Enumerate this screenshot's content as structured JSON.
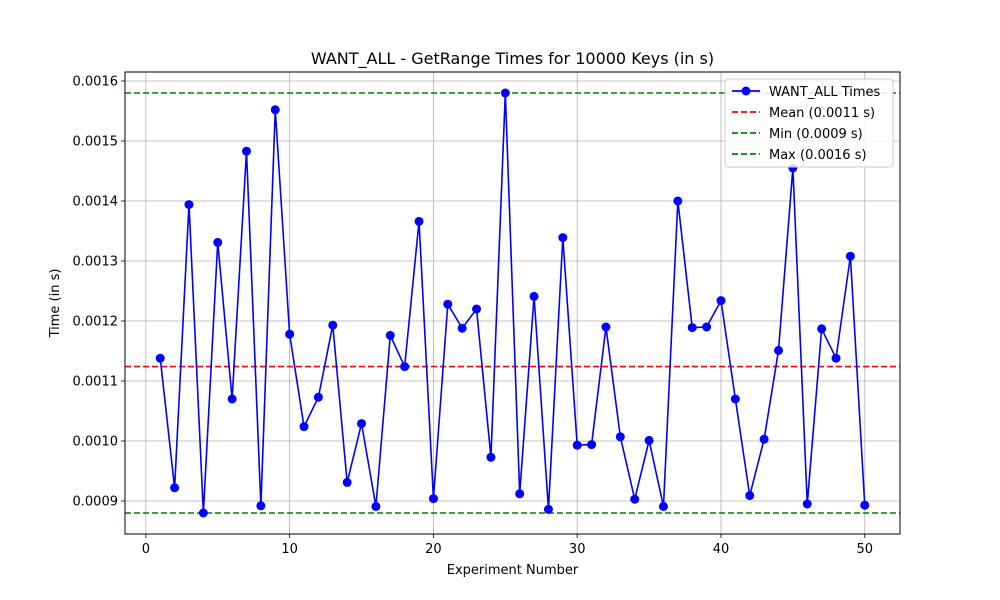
{
  "chart_data": {
    "type": "line",
    "title": "WANT_ALL - GetRange Times for 10000 Keys (in s)",
    "xlabel": "Experiment Number",
    "ylabel": "Time (in s)",
    "xlim": [
      -1.45,
      52.45
    ],
    "ylim": [
      0.000845,
      0.001615
    ],
    "xticks": [
      0,
      10,
      20,
      30,
      40,
      50
    ],
    "xtick_labels": [
      "0",
      "10",
      "20",
      "30",
      "40",
      "50"
    ],
    "yticks": [
      0.0009,
      0.001,
      0.0011,
      0.0012,
      0.0013,
      0.0014,
      0.0015,
      0.0016
    ],
    "ytick_labels": [
      "0.0009",
      "0.0010",
      "0.0011",
      "0.0012",
      "0.0013",
      "0.0014",
      "0.0015",
      "0.0016"
    ],
    "grid": true,
    "legend_position": "top-right",
    "series": [
      {
        "name": "WANT_ALL Times",
        "color": "#0000ff",
        "marker": "circle",
        "x": [
          1,
          2,
          3,
          4,
          5,
          6,
          7,
          8,
          9,
          10,
          11,
          12,
          13,
          14,
          15,
          16,
          17,
          18,
          19,
          20,
          21,
          22,
          23,
          24,
          25,
          26,
          27,
          28,
          29,
          30,
          31,
          32,
          33,
          34,
          35,
          36,
          37,
          38,
          39,
          40,
          41,
          42,
          43,
          44,
          45,
          46,
          47,
          48,
          49,
          50
        ],
        "values": [
          0.001138,
          0.000922,
          0.001394,
          0.00088,
          0.001331,
          0.00107,
          0.001483,
          0.000892,
          0.001552,
          0.001178,
          0.001024,
          0.001073,
          0.001193,
          0.000931,
          0.001029,
          0.000891,
          0.001176,
          0.001124,
          0.001366,
          0.000904,
          0.001228,
          0.001188,
          0.00122,
          0.000973,
          0.00158,
          0.000912,
          0.001241,
          0.000886,
          0.001339,
          0.000993,
          0.000994,
          0.00119,
          0.001007,
          0.000903,
          0.001001,
          0.000891,
          0.0014,
          0.001189,
          0.00119,
          0.001234,
          0.00107,
          0.000909,
          0.001003,
          0.001151,
          0.001455,
          0.000895,
          0.001187,
          0.001138,
          0.001308,
          0.000893
        ]
      }
    ],
    "reference_lines": [
      {
        "name": "Mean (0.0011 s)",
        "value": 0.001124,
        "color": "#ff0000",
        "style": "dashed"
      },
      {
        "name": "Min (0.0009 s)",
        "value": 0.00088,
        "color": "#008000",
        "style": "dashed"
      },
      {
        "name": "Max (0.0016 s)",
        "value": 0.00158,
        "color": "#008000",
        "style": "dashed"
      }
    ]
  }
}
